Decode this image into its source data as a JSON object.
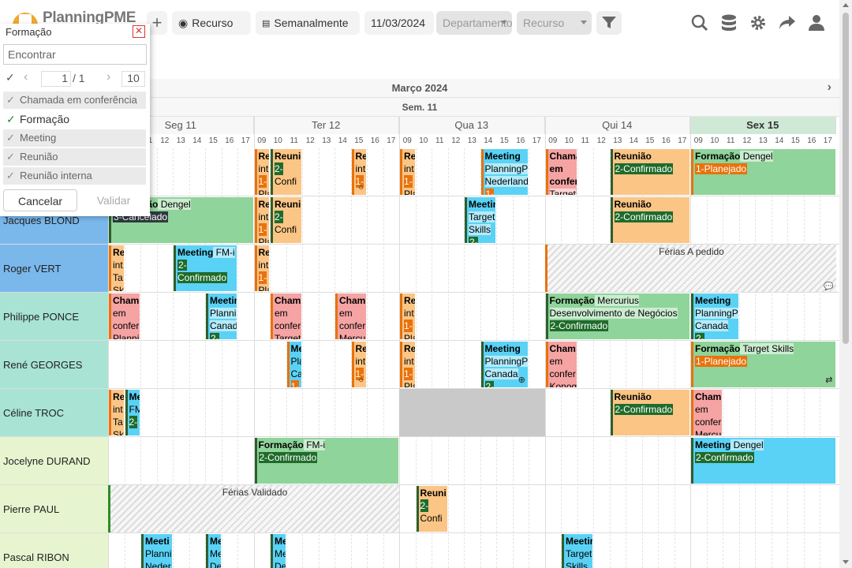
{
  "app": {
    "logo_text": "PlanningPME"
  },
  "toolbar": {
    "resource_view": "Recurso",
    "period": "Semanalmente",
    "date": "11/03/2024",
    "department_placeholder": "Departamento",
    "resource_placeholder": "Recurso"
  },
  "filter": {
    "title": "Formação",
    "search_placeholder": "Encontrar",
    "page": "1",
    "page_total": "/ 1",
    "page_size": "10",
    "options": [
      {
        "label": "Chamada em conferência",
        "selected": false
      },
      {
        "label": "Formação",
        "selected": true
      },
      {
        "label": "Meeting",
        "selected": false
      },
      {
        "label": "Reunião",
        "selected": false
      },
      {
        "label": "Reunião interna",
        "selected": false
      }
    ],
    "cancel": "Cancelar",
    "validate": "Validar"
  },
  "calendar": {
    "month": "Março 2024",
    "week": "Sem. 11",
    "days": [
      {
        "label": "Seg 11",
        "today": false
      },
      {
        "label": "Ter 12",
        "today": false
      },
      {
        "label": "Qua 13",
        "today": false
      },
      {
        "label": "Qui 14",
        "today": false
      },
      {
        "label": "Sex 15",
        "today": true
      }
    ],
    "hours": [
      "09",
      "10",
      "11",
      "12",
      "13",
      "14",
      "15",
      "16",
      "17"
    ]
  },
  "rows": [
    {
      "name": "",
      "events": [
        {
          "day": 1,
          "s": 0,
          "e": 1,
          "c": "o",
          "t": "Reunião interna",
          "s2": "1-Planejado",
          "cut": "Re int 1- Pla"
        },
        {
          "day": 1,
          "s": 1,
          "e": 3,
          "c": "o",
          "t": "Reunião",
          "s2": "2-Confirmado",
          "cut": "Reuni 2- Confi"
        },
        {
          "day": 1,
          "s": 6,
          "e": 7,
          "c": "o",
          "t": "Reunião interna",
          "s2": "1-Planejado",
          "cut": "Re int 1-",
          "icon": "comment"
        },
        {
          "day": 2,
          "s": 0,
          "e": 1,
          "c": "o",
          "t": "Reunião interna",
          "s2": "1-Planejado",
          "cut": "Re int 1- Pla"
        },
        {
          "day": 2,
          "s": 5,
          "e": 8,
          "c": "b",
          "t": "Meeting",
          "d": "PlanningPME Nederland",
          "s2": "1-Planejado"
        },
        {
          "day": 3,
          "s": 0,
          "e": 2,
          "c": "p",
          "t": "Chamada em conferência",
          "d": "Target"
        },
        {
          "day": 3,
          "s": 4,
          "e": 9,
          "c": "o",
          "t": "Reunião",
          "s2": "2-Confirmado"
        },
        {
          "day": 4,
          "s": 0,
          "e": 9,
          "c": "g",
          "t": "Formação",
          "d": "Dengel",
          "s2": "1-Planejado"
        }
      ]
    },
    {
      "name": "Jacques BLOND",
      "events": [
        {
          "day": 0,
          "s": 0,
          "e": 9,
          "c": "g",
          "t": "Formação",
          "d": "Dengel",
          "s2": "3-Cancelado"
        },
        {
          "day": 1,
          "s": 0,
          "e": 1,
          "c": "o",
          "t": "Reunião interna",
          "s2": "1-Planejado",
          "cut": "Re int 1- Pla"
        },
        {
          "day": 1,
          "s": 1,
          "e": 3,
          "c": "o",
          "t": "Reunião",
          "s2": "2-Confirmado",
          "cut": "Reuni 2- Confi"
        },
        {
          "day": 2,
          "s": 4,
          "e": 6,
          "c": "b",
          "t": "Meeting",
          "d": "Target Skills",
          "s2": "2-Confirmado"
        },
        {
          "day": 3,
          "s": 4,
          "e": 9,
          "c": "o",
          "t": "Reunião",
          "s2": "2-Confirmado"
        }
      ]
    },
    {
      "name": "Roger VERT",
      "events": [
        {
          "day": 0,
          "s": 0,
          "e": 1,
          "c": "o",
          "t": "Reunião interna",
          "d": "Target Skills",
          "cut": "Re int Ta Sk"
        },
        {
          "day": 0,
          "s": 4,
          "e": 8,
          "c": "b",
          "t": "Meeting",
          "d": "FM-i",
          "s2": "2-Confirmado"
        },
        {
          "day": 1,
          "s": 0,
          "e": 1,
          "c": "o",
          "t": "Reunião interna",
          "s2": "1-Planejado",
          "cut": "Re int 1- Pla"
        }
      ],
      "absence": {
        "from": 3,
        "to": 4,
        "label": "Férias A pedido",
        "icon": "comment"
      }
    },
    {
      "name": "Philippe PONCE",
      "events": [
        {
          "day": 0,
          "s": 0,
          "e": 2,
          "c": "p",
          "t": "Chamada em conferência",
          "d": "PlanningPME",
          "cut": "Cham em confer Planni"
        },
        {
          "day": 0,
          "s": 6,
          "e": 8,
          "c": "b",
          "t": "Meeting",
          "d": "PlanningPME Canada",
          "s2": "2-Confirmado"
        },
        {
          "day": 1,
          "s": 1,
          "e": 3,
          "c": "p",
          "t": "Chamada em conferência",
          "d": "Target",
          "cut": "Cham em confer Target"
        },
        {
          "day": 1,
          "s": 5,
          "e": 7,
          "c": "p",
          "t": "Chamada em conferência",
          "d": "Mercurius",
          "cut": "Cham em confer Mercu"
        },
        {
          "day": 2,
          "s": 0,
          "e": 1,
          "c": "o",
          "t": "Reunião interna",
          "s2": "1-Planejado",
          "cut": "Re int 1- Pla"
        },
        {
          "day": 3,
          "s": 0,
          "e": 9,
          "c": "g",
          "t": "Formação",
          "d": "Mercurius",
          "d2": "Desenvolvimento de Negócios",
          "s2": "2-Confirmado"
        },
        {
          "day": 4,
          "s": 0,
          "e": 3,
          "c": "b",
          "t": "Meeting",
          "d": "PlanningPME Canada",
          "s2": "2-Confirmado"
        }
      ]
    },
    {
      "name": "René GEORGES",
      "events": [
        {
          "day": 1,
          "s": 2,
          "e": 3,
          "c": "b",
          "t": "Meeting",
          "d": "PlanningPME Canada",
          "s2": "1-Planejado",
          "cut": "Me Pla Ca 1-"
        },
        {
          "day": 1,
          "s": 6,
          "e": 7,
          "c": "o",
          "t": "Reunião interna",
          "s2": "1-Planejado",
          "cut": "Re int 1-",
          "icon": "comment"
        },
        {
          "day": 2,
          "s": 0,
          "e": 1,
          "c": "o",
          "t": "Reunião interna",
          "s2": "1-Planejado",
          "cut": "Re int 1- Pla"
        },
        {
          "day": 2,
          "s": 5,
          "e": 8,
          "c": "b",
          "t": "Meeting",
          "d": "PlanningPME Canada",
          "s2": "2-Confirmado",
          "icon": "plus"
        },
        {
          "day": 3,
          "s": 0,
          "e": 2,
          "c": "p",
          "t": "Chamada em conferência",
          "d": "Konogy",
          "cut": "Cham em confer Konog"
        },
        {
          "day": 4,
          "s": 0,
          "e": 9,
          "c": "g",
          "t": "Formação",
          "d": "Target Skills",
          "s2": "1-Planejado",
          "icon": "repeat"
        }
      ]
    },
    {
      "name": "Céline TROC",
      "events": [
        {
          "day": 0,
          "s": 0,
          "e": 1,
          "c": "o",
          "t": "Reunião interna",
          "d": "Target Skills",
          "cut": "Re int Ta Sk"
        },
        {
          "day": 0,
          "s": 1,
          "e": 2,
          "c": "b",
          "t": "Meeting",
          "d": "FM-i",
          "s2": "2-Confirmado",
          "cut": "Me FM 2-"
        },
        {
          "day": 3,
          "s": 4,
          "e": 9,
          "c": "o",
          "t": "Reunião",
          "s2": "2-Confirmado"
        },
        {
          "day": 4,
          "s": 0,
          "e": 2,
          "c": "p",
          "t": "Chamada em conferência",
          "d": "Mercurius",
          "cut": "Cham em confer Mercu"
        }
      ],
      "blocked": {
        "day": 2
      }
    },
    {
      "name": "Jocelyne DURAND",
      "events": [
        {
          "day": 1,
          "s": 0,
          "e": 9,
          "c": "g",
          "t": "Formação",
          "d": "FM-i",
          "s2": "2-Confirmado"
        },
        {
          "day": 4,
          "s": 0,
          "e": 9,
          "c": "b",
          "t": "Meeting",
          "d": "Dengel",
          "s2": "2-Confirmado"
        }
      ]
    },
    {
      "name": "Pierre PAUL",
      "events": [
        {
          "day": 2,
          "s": 1,
          "e": 3,
          "c": "o",
          "t": "Reunião",
          "s2": "2-Confirmado",
          "cut": "Reuni 2- Confi"
        }
      ],
      "absence": {
        "from": 0,
        "to": 1,
        "label": "Férias Validado"
      }
    },
    {
      "name": "Pascal RIBON",
      "events": [
        {
          "day": 0,
          "s": 2,
          "e": 4,
          "c": "b",
          "t": "Meeting",
          "d": "PlanningPME Nederland",
          "cut": "Meeti Planni Neder"
        },
        {
          "day": 0,
          "s": 6,
          "e": 7,
          "c": "b",
          "t": "Meeting",
          "d": "Mercurius",
          "cut": "Me Me De"
        },
        {
          "day": 1,
          "s": 1,
          "e": 2,
          "c": "b",
          "t": "Meeting",
          "d": "Mercurius",
          "cut": "Me Me De"
        },
        {
          "day": 3,
          "s": 1,
          "e": 3,
          "c": "b",
          "t": "Meeting",
          "d": "Target Skills",
          "cut": "Meetir Target Skills"
        }
      ]
    }
  ],
  "colors": {
    "orange": "#fbc585",
    "pink": "#f5a3a3",
    "blue": "#5ad2f5",
    "green": "#8fd49a",
    "today": "#cfe9d6",
    "status_green": "#1f6b2b",
    "status_orange": "#e8720c",
    "status_dark": "#2f3a40"
  }
}
